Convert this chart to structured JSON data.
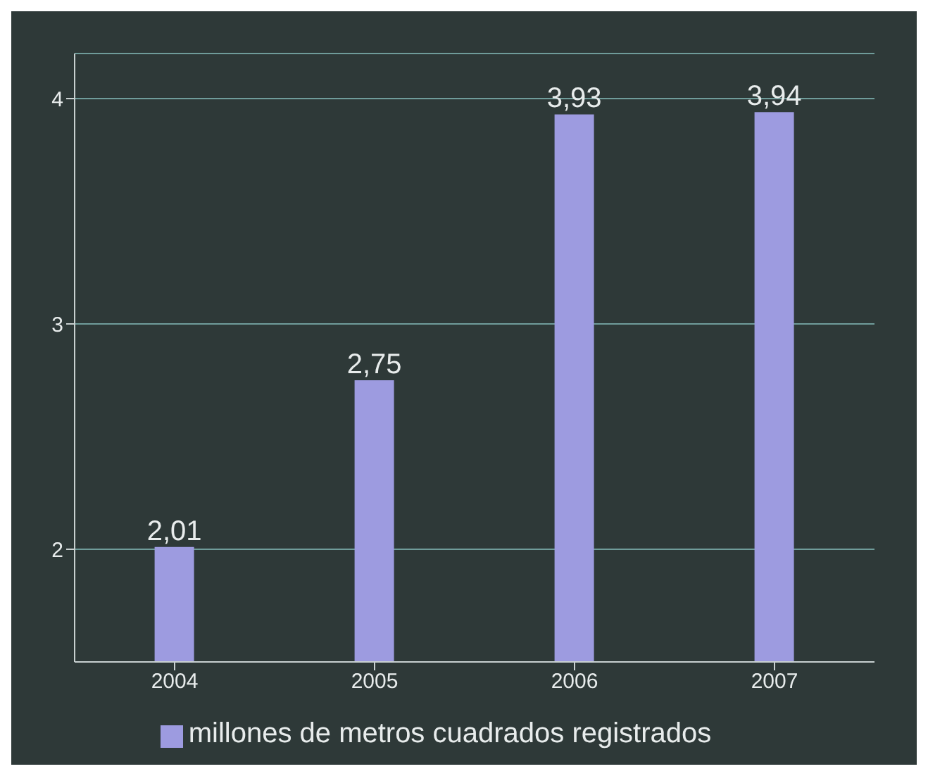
{
  "chart_data": {
    "type": "bar",
    "categories": [
      "2004",
      "2005",
      "2006",
      "2007"
    ],
    "series": [
      {
        "name": "millones de metros cuadrados registrados",
        "color": "#9d9be0",
        "values": [
          2.01,
          2.75,
          3.93,
          3.94
        ],
        "value_labels": [
          "2,01",
          "2,75",
          "3,93",
          "3,94"
        ]
      }
    ],
    "ylim": [
      1.5,
      4.2
    ],
    "yticks": [
      2,
      3,
      4
    ],
    "grid": "y",
    "legend": "bottom"
  }
}
